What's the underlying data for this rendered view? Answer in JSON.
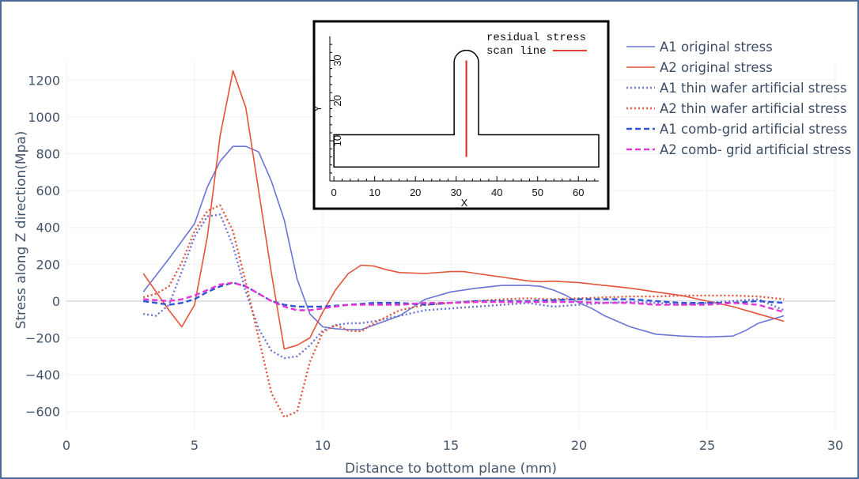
{
  "chart_data": [
    {
      "type": "line",
      "xlabel": "Distance to bottom plane (mm)",
      "ylabel": "Stress along Z direction(Mpa)",
      "xlim": [
        0,
        30
      ],
      "ylim": [
        -700,
        1300
      ],
      "xticks": [
        0,
        5,
        10,
        15,
        20,
        25,
        30
      ],
      "yticks": [
        -600,
        -400,
        -200,
        0,
        200,
        400,
        600,
        800,
        1000,
        1200
      ],
      "grid": true,
      "legend_position": "top-right",
      "series": [
        {
          "name": "A1 original stress",
          "color": "#6b73d6",
          "dash": "solid",
          "x": [
            3,
            4,
            5,
            5.5,
            6,
            6.5,
            7,
            7.5,
            8,
            8.5,
            9,
            9.5,
            10,
            10.5,
            11,
            11.5,
            12,
            13,
            14,
            15,
            16,
            17,
            18,
            18.5,
            19,
            19.5,
            20,
            20.5,
            21,
            22,
            23,
            24,
            25,
            26,
            26.5,
            27,
            28
          ],
          "y": [
            50,
            230,
            420,
            620,
            760,
            840,
            840,
            810,
            650,
            440,
            120,
            -70,
            -140,
            -150,
            -155,
            -155,
            -130,
            -80,
            10,
            50,
            70,
            85,
            85,
            80,
            60,
            30,
            -10,
            -40,
            -80,
            -140,
            -180,
            -190,
            -195,
            -190,
            -160,
            -120,
            -80
          ]
        },
        {
          "name": "A2 original stress",
          "color": "#e4533a",
          "dash": "solid",
          "x": [
            3,
            4,
            4.5,
            5,
            5.5,
            6,
            6.5,
            7,
            7.5,
            8,
            8.5,
            9,
            9.5,
            10,
            10.5,
            11,
            11.5,
            12,
            12.5,
            13,
            14,
            15,
            15.5,
            16,
            17,
            18,
            18.5,
            19,
            20,
            21,
            22,
            23,
            24,
            25,
            26,
            27,
            28
          ],
          "y": [
            150,
            -50,
            -140,
            -20,
            350,
            900,
            1250,
            1050,
            600,
            150,
            -260,
            -240,
            -200,
            -60,
            60,
            150,
            195,
            190,
            170,
            155,
            150,
            160,
            160,
            150,
            130,
            110,
            105,
            108,
            100,
            85,
            70,
            50,
            30,
            0,
            -30,
            -70,
            -110
          ]
        },
        {
          "name": "A1 thin wafer artificial stress",
          "color": "#6b73d6",
          "dash": "dot",
          "x": [
            3,
            3.5,
            4,
            4.5,
            5,
            5.5,
            6,
            6.5,
            7,
            7.5,
            8,
            8.5,
            9,
            9.5,
            10,
            10.5,
            11,
            11.5,
            12,
            13,
            14,
            15,
            16,
            17,
            18,
            19,
            20,
            21,
            22,
            23,
            24,
            25,
            26,
            27,
            28
          ],
          "y": [
            -70,
            -80,
            -20,
            160,
            350,
            460,
            470,
            300,
            50,
            -150,
            -270,
            -310,
            -300,
            -240,
            -160,
            -130,
            -120,
            -120,
            -110,
            -80,
            -50,
            -40,
            -30,
            -20,
            -10,
            -30,
            -20,
            -10,
            -5,
            -10,
            -20,
            -10,
            0,
            10,
            -50
          ]
        },
        {
          "name": "A2 thin wafer artificial stress",
          "color": "#e4533a",
          "dash": "dot",
          "x": [
            3,
            3.5,
            4,
            4.5,
            5,
            5.5,
            6,
            6.5,
            7,
            7.5,
            8,
            8.5,
            9,
            9.5,
            10,
            10.5,
            11,
            11.5,
            12,
            13,
            14,
            15,
            16,
            17,
            18,
            19,
            20,
            21,
            22,
            23,
            24,
            25,
            26,
            27,
            28
          ],
          "y": [
            20,
            40,
            80,
            210,
            380,
            490,
            520,
            380,
            100,
            -200,
            -500,
            -630,
            -600,
            -330,
            -170,
            -130,
            -160,
            -165,
            -120,
            -50,
            -20,
            -10,
            0,
            10,
            15,
            10,
            15,
            20,
            25,
            25,
            30,
            30,
            30,
            25,
            10
          ]
        },
        {
          "name": "A1 comb-grid artificial stress",
          "color": "#2f55d4",
          "dash": "dash",
          "x": [
            3,
            4,
            4.5,
            5,
            5.5,
            6,
            6.5,
            7,
            7.5,
            8,
            8.5,
            9,
            10,
            11,
            12,
            13,
            14,
            15,
            16,
            17,
            18,
            19,
            20,
            21,
            22,
            23,
            24,
            25,
            26,
            27,
            28
          ],
          "y": [
            0,
            -20,
            -10,
            10,
            50,
            80,
            100,
            80,
            40,
            0,
            -20,
            -30,
            -30,
            -20,
            -10,
            -10,
            -20,
            -10,
            0,
            0,
            0,
            5,
            10,
            10,
            10,
            0,
            -10,
            -10,
            -10,
            0,
            -10
          ]
        },
        {
          "name": "A2 comb- grid artificial stress",
          "color": "#e337d6",
          "dash": "dash",
          "x": [
            3,
            4,
            4.5,
            5,
            5.5,
            6,
            6.5,
            7,
            7.5,
            8,
            8.5,
            9,
            9.5,
            10,
            11,
            12,
            13,
            14,
            15,
            16,
            17,
            18,
            19,
            20,
            21,
            22,
            23,
            24,
            25,
            26,
            27,
            28
          ],
          "y": [
            10,
            0,
            10,
            30,
            60,
            90,
            100,
            80,
            40,
            0,
            -30,
            -50,
            -50,
            -40,
            -20,
            -20,
            -20,
            -10,
            -10,
            -5,
            -5,
            -5,
            -5,
            -5,
            -10,
            -10,
            -20,
            -20,
            -20,
            -10,
            -20,
            -60
          ]
        }
      ]
    },
    {
      "type": "line",
      "xlabel": "X",
      "ylabel": "Y",
      "xlim": [
        -1,
        65
      ],
      "ylim": [
        0,
        36
      ],
      "xticks": [
        0,
        10,
        20,
        30,
        40,
        50,
        60
      ],
      "yticks": [
        10,
        20,
        30
      ],
      "legend_position": "top-right",
      "series": [
        {
          "name": "outline",
          "color": "#000000",
          "dash": "solid",
          "x": [
            0,
            29.5,
            29.5,
            35.5,
            35.5,
            65,
            65,
            0,
            0
          ],
          "y": [
            11.5,
            11.5,
            29.5,
            29.5,
            11.5,
            11.5,
            3.5,
            3.5,
            11.5
          ]
        },
        {
          "name": "residual stress scan line",
          "color": "#e4201c",
          "dash": "solid",
          "x": [
            32.5,
            32.5
          ],
          "y": [
            6,
            30
          ]
        }
      ],
      "legend_label_lines": [
        "residual stress",
        "scan line"
      ]
    }
  ]
}
